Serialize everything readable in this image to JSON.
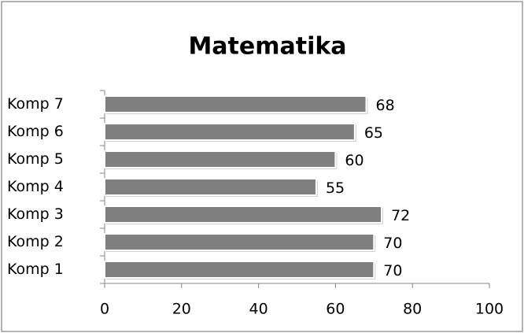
{
  "chart_data": {
    "type": "bar",
    "orientation": "horizontal",
    "title": "Matematika",
    "categories": [
      "Komp 1",
      "Komp 2",
      "Komp 3",
      "Komp 4",
      "Komp 5",
      "Komp 6",
      "Komp 7"
    ],
    "values": [
      70,
      70,
      72,
      55,
      60,
      65,
      68
    ],
    "color": "#7f7f7f",
    "xlim": [
      0,
      100
    ],
    "xticks": [
      0,
      20,
      40,
      60,
      80,
      100
    ],
    "grid": false
  }
}
